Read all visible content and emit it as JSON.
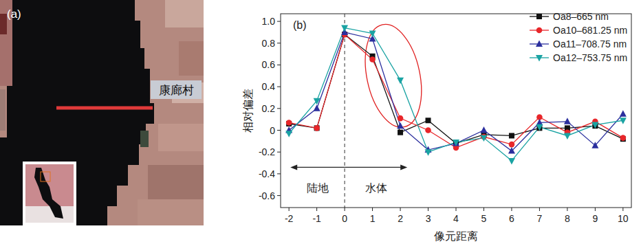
{
  "image_panel": {
    "label": "(a)",
    "place_label": "康廊村"
  },
  "chart_data": {
    "type": "line",
    "title": "(b)",
    "xlabel": "像元距离",
    "ylabel": "相对偏差",
    "x": [
      -2,
      -1,
      0,
      1,
      2,
      3,
      4,
      5,
      6,
      7,
      8,
      9,
      10
    ],
    "xlim": [
      -2.3,
      10.3
    ],
    "xticks": [
      -2,
      -1,
      0,
      1,
      2,
      3,
      4,
      5,
      6,
      7,
      8,
      9,
      10
    ],
    "ylim": [
      -0.71,
      1.07
    ],
    "yticks": [
      -0.6,
      -0.4,
      -0.2,
      0,
      0.2,
      0.4,
      0.6,
      0.8,
      {
        "value": 1,
        "label": "1.0"
      }
    ],
    "grid": false,
    "legend": "upper right",
    "series": [
      {
        "name": "Oa8–665 nm",
        "color": "#111111",
        "marker": "square",
        "values": [
          0.06,
          0.02,
          0.88,
          0.68,
          -0.02,
          0.09,
          -0.12,
          -0.04,
          -0.05,
          0.02,
          0.02,
          0.04,
          -0.08
        ]
      },
      {
        "name": "Oa10–681.25 nm",
        "color": "#e8262a",
        "marker": "circle",
        "values": [
          0.07,
          0.02,
          0.88,
          0.65,
          0.11,
          0.0,
          -0.16,
          -0.06,
          -0.13,
          0.12,
          -0.02,
          0.08,
          -0.07
        ]
      },
      {
        "name": "Oa11–708.75 nm",
        "color": "#2b2f9e",
        "marker": "triangle-up",
        "values": [
          0.0,
          0.2,
          0.9,
          0.84,
          0.04,
          -0.18,
          -0.12,
          0.0,
          -0.19,
          0.07,
          0.08,
          -0.14,
          0.15
        ]
      },
      {
        "name": "Oa12–753.75 nm",
        "color": "#1aa3a3",
        "marker": "triangle-down",
        "values": [
          -0.03,
          0.27,
          0.94,
          0.89,
          0.46,
          -0.2,
          -0.11,
          -0.07,
          -0.28,
          0.03,
          -0.05,
          0.05,
          0.09
        ]
      }
    ],
    "annotations": [
      {
        "type": "vline",
        "x": 0,
        "line_style": "dashed"
      },
      {
        "type": "arrow",
        "text": "陆地",
        "x": [
          0,
          -1.95
        ],
        "y": -0.34
      },
      {
        "type": "arrow",
        "text": "水体",
        "x": [
          0,
          2.25
        ],
        "y": -0.34
      },
      {
        "type": "ellipse",
        "x": [
          0.8,
          2.7
        ],
        "y": [
          0.02,
          0.98
        ],
        "color": "#e02020"
      }
    ]
  }
}
